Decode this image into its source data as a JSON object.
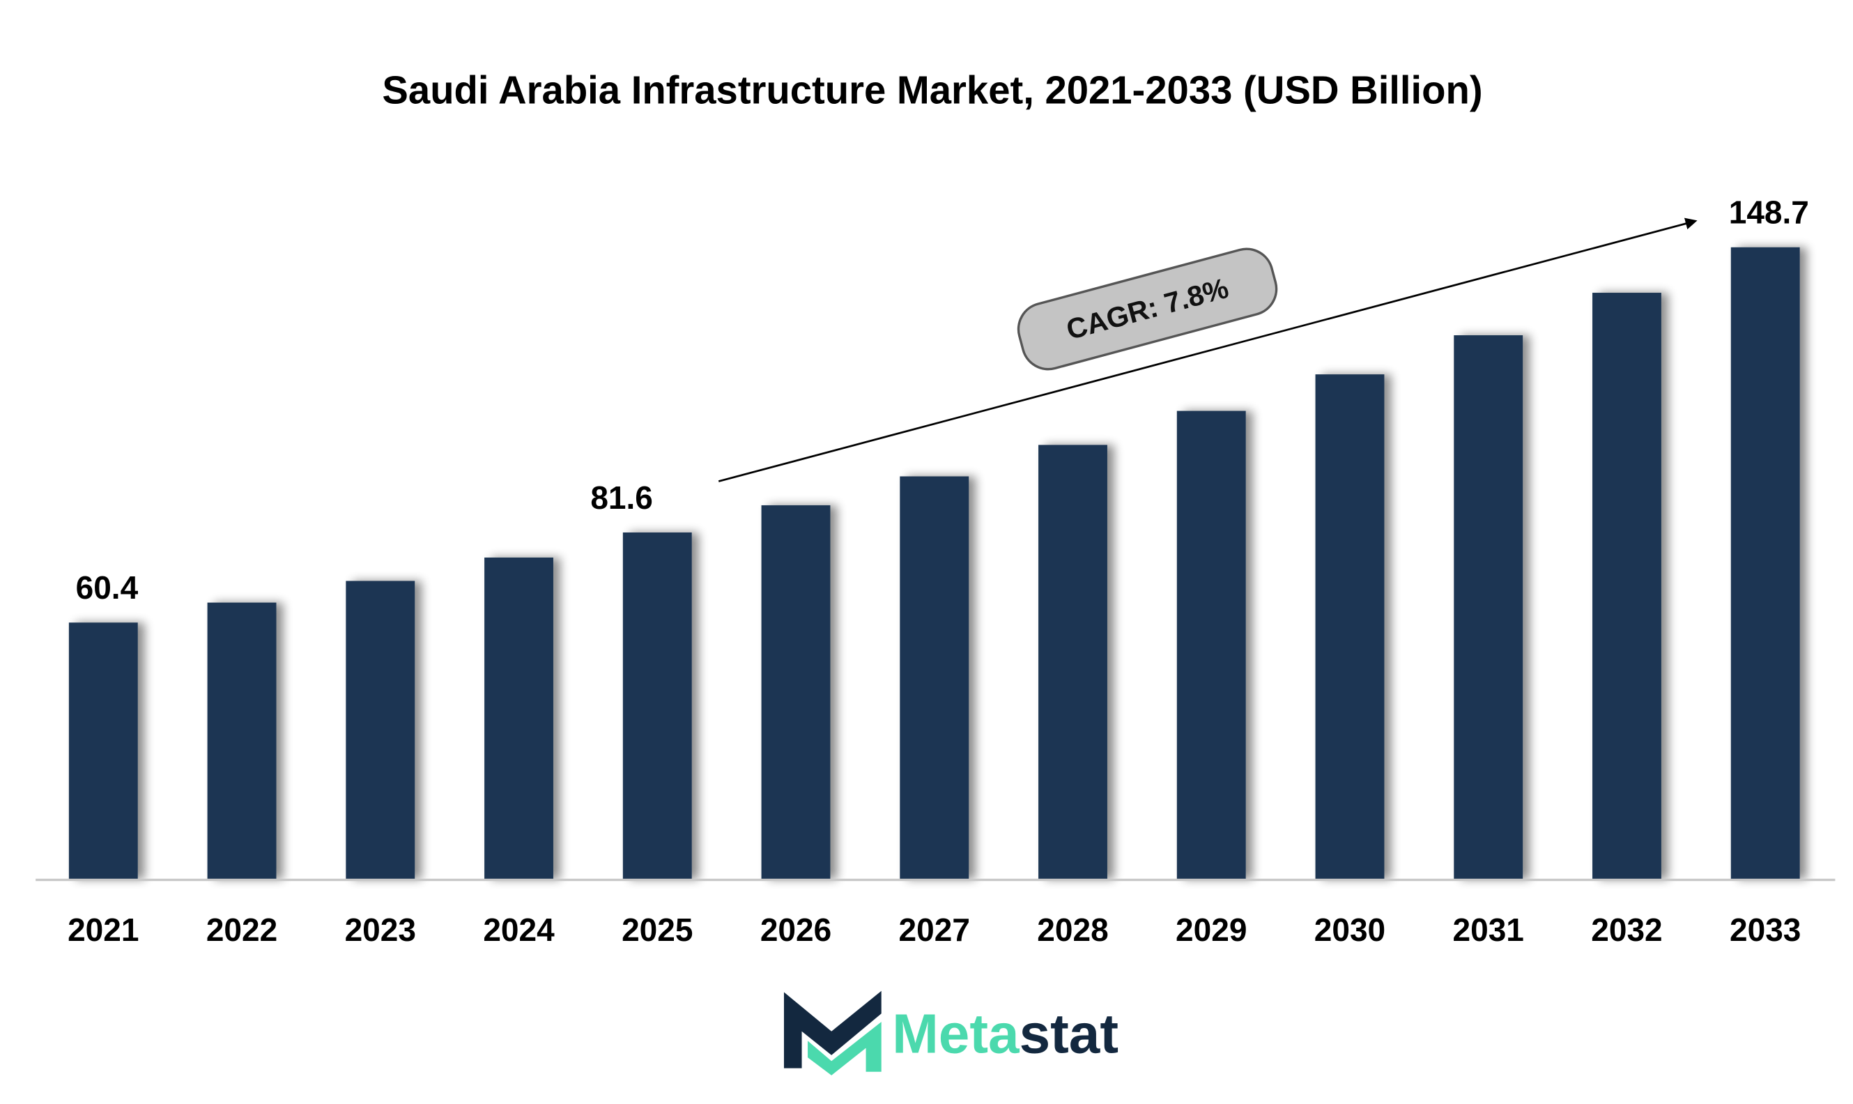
{
  "chart_data": {
    "type": "bar",
    "title": "Saudi Arabia Infrastructure Market, 2021-2033 (USD Billion)",
    "xlabel": "",
    "ylabel": "",
    "ylim": [
      0,
      150
    ],
    "grid": false,
    "categories": [
      "2021",
      "2022",
      "2023",
      "2024",
      "2025",
      "2026",
      "2027",
      "2028",
      "2029",
      "2030",
      "2031",
      "2032",
      "2033"
    ],
    "values": [
      60.4,
      65.1,
      70.2,
      75.7,
      81.6,
      88.0,
      94.8,
      102.2,
      110.2,
      118.8,
      128.0,
      138.0,
      148.7
    ],
    "data_labels": [
      {
        "category": "2021",
        "text": "60.4"
      },
      {
        "category": "2025",
        "text": "81.6"
      },
      {
        "category": "2033",
        "text": "148.7"
      }
    ],
    "annotation": {
      "text": "CAGR: 7.8%",
      "from": "2025",
      "to": "2033"
    },
    "colors": {
      "bar": "#1a3552",
      "axis": "#c8c8c8",
      "callout_fill": "#c4c4c4",
      "callout_stroke": "#555555"
    }
  },
  "logo": {
    "text_part1": "Meta",
    "text_part2": "stat",
    "color_teal": "#4bd9ad",
    "color_navy": "#13283f"
  }
}
